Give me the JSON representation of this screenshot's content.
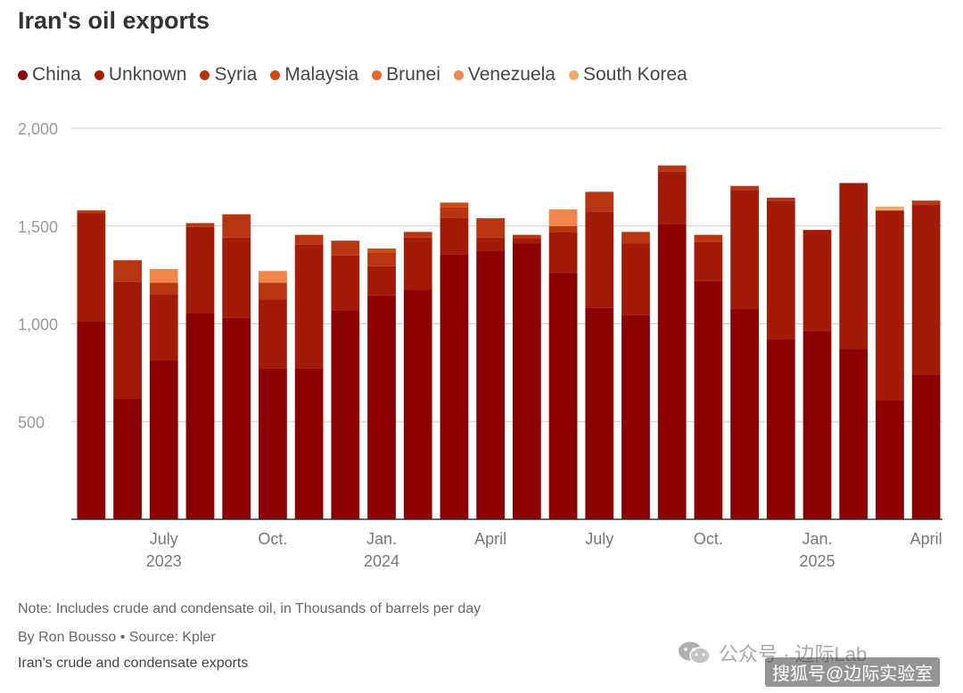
{
  "title": "Iran's oil exports",
  "note": "Note: Includes crude and condensate oil, in Thousands of barrels per day",
  "byline": "By Ron Bousso • Source: Kpler",
  "subtitle": "Iran's crude and condensate exports",
  "watermark": {
    "text": "公众号 · 边际Lab",
    "text2": "搜狐号@边际实验室"
  },
  "colors": {
    "China": "#8b0000",
    "Unknown": "#a31a08",
    "Syria": "#b83512",
    "Malaysia": "#cc4a15",
    "Brunei": "#e8692e",
    "Venezuela": "#f0864a",
    "South Korea": "#f2a96c"
  },
  "chart_data": {
    "type": "bar",
    "stacked": true,
    "categories": [
      "2023-05",
      "2023-06",
      "2023-07",
      "2023-08",
      "2023-09",
      "2023-10",
      "2023-11",
      "2023-12",
      "2024-01",
      "2024-02",
      "2024-03",
      "2024-04",
      "2024-05",
      "2024-06",
      "2024-07",
      "2024-08",
      "2024-09",
      "2024-10",
      "2024-11",
      "2024-12",
      "2025-01",
      "2025-02",
      "2025-03",
      "2025-04"
    ],
    "x_tick_labels": [
      {
        "category": "2023-07",
        "label": "July",
        "year": "2023"
      },
      {
        "category": "2023-10",
        "label": "Oct.",
        "year": ""
      },
      {
        "category": "2024-01",
        "label": "Jan.",
        "year": "2024"
      },
      {
        "category": "2024-04",
        "label": "April",
        "year": ""
      },
      {
        "category": "2024-07",
        "label": "July",
        "year": ""
      },
      {
        "category": "2024-10",
        "label": "Oct.",
        "year": ""
      },
      {
        "category": "2025-01",
        "label": "Jan.",
        "year": "2025"
      },
      {
        "category": "2025-04",
        "label": "April",
        "year": ""
      }
    ],
    "ylim": [
      0,
      2000
    ],
    "yticks": [
      500,
      1000,
      1500,
      2000
    ],
    "ytick_labels": [
      "500",
      "1,000",
      "1,500",
      "2,000"
    ],
    "grid": true,
    "legend_position": "top-left",
    "series": [
      {
        "name": "China",
        "values": [
          1015,
          615,
          815,
          1055,
          1030,
          770,
          770,
          1070,
          1145,
          1175,
          1355,
          1375,
          1410,
          1260,
          1080,
          1045,
          1510,
          1220,
          1075,
          920,
          965,
          870,
          610,
          740
        ]
      },
      {
        "name": "Unknown",
        "values": [
          550,
          600,
          335,
          440,
          410,
          355,
          635,
          280,
          150,
          265,
          185,
          65,
          25,
          210,
          495,
          365,
          270,
          200,
          610,
          710,
          515,
          850,
          970,
          870
        ]
      },
      {
        "name": "Syria",
        "values": [
          15,
          110,
          60,
          20,
          120,
          85,
          50,
          75,
          70,
          30,
          55,
          100,
          20,
          30,
          100,
          60,
          30,
          35,
          20,
          15,
          0,
          0,
          0,
          20
        ]
      },
      {
        "name": "Malaysia",
        "values": [
          0,
          0,
          0,
          0,
          0,
          0,
          0,
          0,
          20,
          0,
          25,
          0,
          0,
          0,
          0,
          0,
          0,
          0,
          0,
          0,
          0,
          0,
          0,
          0
        ]
      },
      {
        "name": "Brunei",
        "values": [
          0,
          0,
          0,
          0,
          0,
          0,
          0,
          0,
          0,
          0,
          0,
          0,
          0,
          0,
          0,
          0,
          0,
          0,
          0,
          0,
          0,
          0,
          0,
          0
        ]
      },
      {
        "name": "Venezuela",
        "values": [
          0,
          0,
          70,
          0,
          0,
          60,
          0,
          0,
          0,
          0,
          0,
          0,
          0,
          85,
          0,
          0,
          0,
          0,
          0,
          0,
          0,
          0,
          0,
          0
        ]
      },
      {
        "name": "South Korea",
        "values": [
          0,
          0,
          0,
          0,
          0,
          0,
          0,
          0,
          0,
          0,
          0,
          0,
          0,
          0,
          0,
          0,
          0,
          0,
          0,
          0,
          0,
          0,
          20,
          0
        ]
      }
    ]
  }
}
